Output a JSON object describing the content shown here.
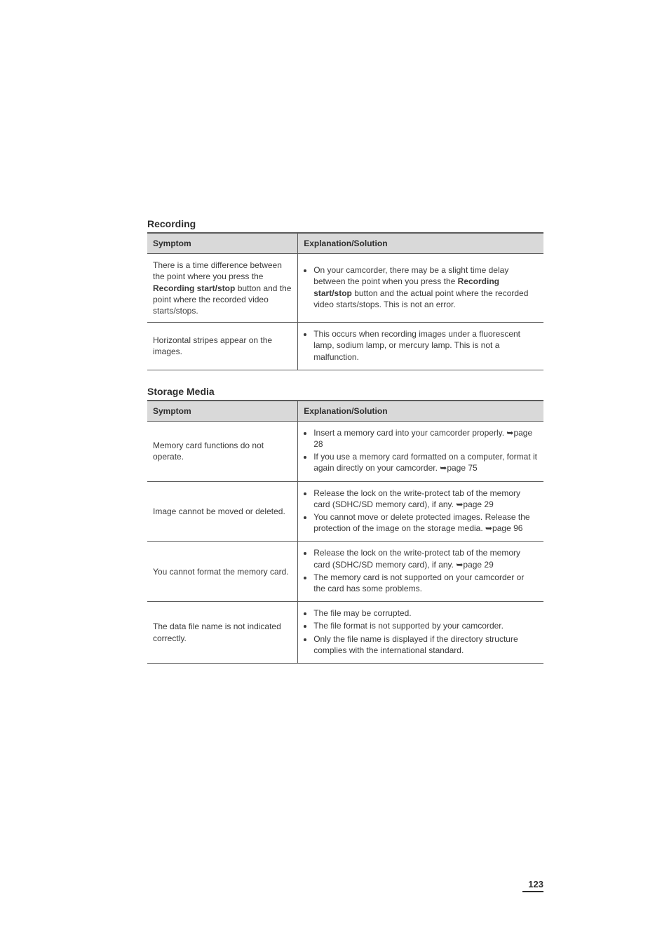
{
  "page_number": "123",
  "sections": [
    {
      "title": "Recording",
      "headers": {
        "col1": "Symptom",
        "col2": "Explanation/Solution"
      },
      "rows": [
        {
          "symptom": "There is a time difference between the point where you press the <b>Recording start/stop</b> button and the point where the recorded video starts/stops.",
          "bullets": [
            "On your camcorder, there may be a slight time delay between the point when you press the <b>Recording start/stop</b> button and the actual point where the recorded video starts/stops. This is not an error."
          ]
        },
        {
          "symptom": "Horizontal stripes appear on the images.",
          "bullets": [
            "This occurs when recording images under a fluorescent lamp, sodium lamp, or mercury lamp. This is not a malfunction."
          ]
        }
      ]
    },
    {
      "title": "Storage Media",
      "headers": {
        "col1": "Symptom",
        "col2": "Explanation/Solution"
      },
      "rows": [
        {
          "symptom": "Memory card functions do not operate.",
          "bullets": [
            "Insert a memory card into your camcorder properly. ➥page 28",
            "If you use a memory card formatted on a computer, format it again directly on your camcorder. ➥page 75"
          ]
        },
        {
          "symptom": "Image cannot be moved or deleted.",
          "bullets": [
            "Release the lock on the write-protect tab of the memory card (SDHC/SD memory card), if any. ➥page 29",
            "You cannot move or delete protected images. Release the protection of the image on the storage media. ➥page 96"
          ]
        },
        {
          "symptom": "You cannot format the memory card.",
          "bullets": [
            "Release the lock on the write-protect tab of the memory card (SDHC/SD memory card), if any. ➥page 29",
            "The memory card is not supported on your camcorder or the card has some problems."
          ]
        },
        {
          "symptom": "The data file name is not indicated correctly.",
          "bullets": [
            "The file may be corrupted.",
            "The file format is not supported by your camcorder.",
            "Only the file name is displayed if the directory structure complies with the international standard."
          ]
        }
      ]
    }
  ]
}
